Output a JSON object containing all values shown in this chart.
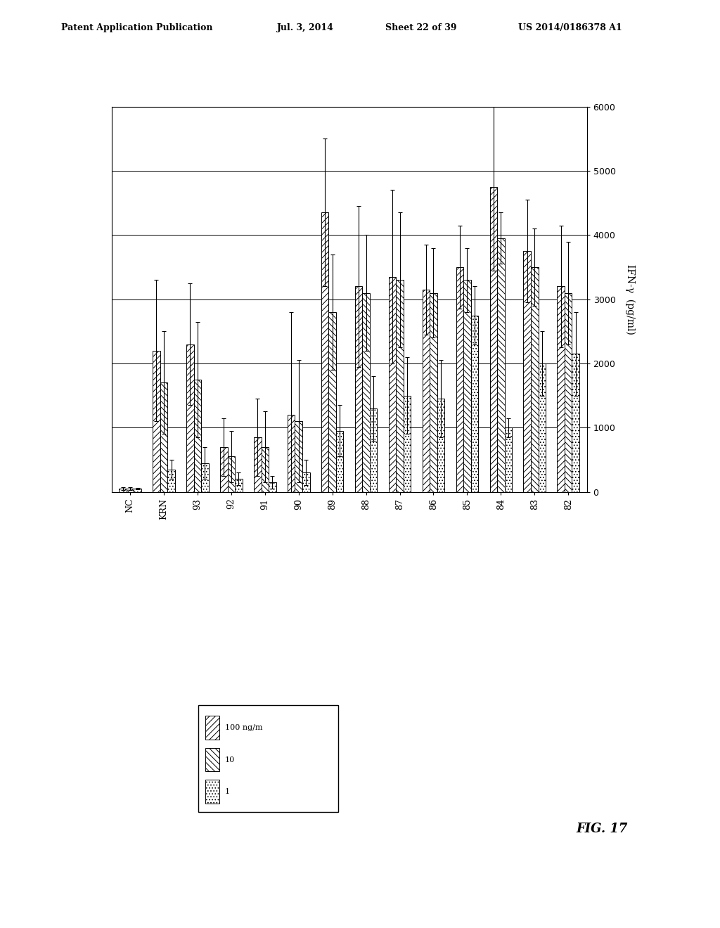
{
  "categories": [
    "NC",
    "KRN",
    "93",
    "92",
    "91",
    "90",
    "89",
    "88",
    "87",
    "86",
    "85",
    "84",
    "83",
    "82"
  ],
  "bar_values": {
    "100": [
      50,
      2200,
      2300,
      700,
      850,
      1200,
      4350,
      3200,
      3350,
      3150,
      3500,
      4750,
      3750,
      3200
    ],
    "10": [
      50,
      1700,
      1750,
      550,
      700,
      1100,
      2800,
      3100,
      3300,
      3100,
      3300,
      3950,
      3500,
      3100
    ],
    "1": [
      50,
      350,
      450,
      200,
      150,
      300,
      950,
      1300,
      1500,
      1450,
      2750,
      1000,
      2000,
      2150
    ]
  },
  "error_values": {
    "100": [
      20,
      1100,
      950,
      450,
      600,
      1600,
      1150,
      1250,
      1350,
      700,
      650,
      1300,
      800,
      950
    ],
    "10": [
      20,
      800,
      900,
      400,
      550,
      950,
      900,
      900,
      1050,
      700,
      500,
      400,
      600,
      800
    ],
    "1": [
      10,
      150,
      250,
      100,
      100,
      200,
      400,
      500,
      600,
      600,
      450,
      150,
      500,
      650
    ]
  },
  "hatch_100": "////",
  "hatch_10": "\\\\\\\\",
  "hatch_1": "....",
  "color_bar": "white",
  "edgecolor": "black",
  "ylabel": "IFN-γ  (pg/ml)",
  "ylim": [
    0,
    6000
  ],
  "yticks": [
    0,
    1000,
    2000,
    3000,
    4000,
    5000,
    6000
  ],
  "header_line1": "Patent Application Publication",
  "header_line2": "Jul. 3, 2014",
  "header_line3": "Sheet 22 of 39",
  "header_line4": "US 2014/0186378 A1",
  "fig_label": "FIG. 17",
  "bar_width": 0.22,
  "background_color": "#ffffff"
}
